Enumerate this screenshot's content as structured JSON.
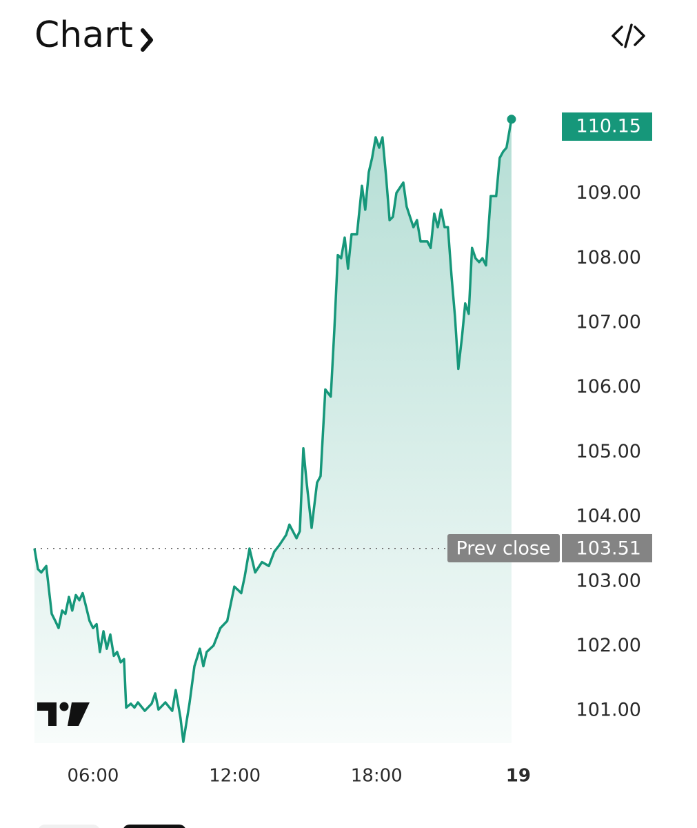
{
  "chart_data": {
    "type": "line",
    "title": "Chart",
    "x": [
      3.52,
      3.67,
      3.81,
      4.02,
      4.25,
      4.4,
      4.54,
      4.69,
      4.83,
      4.98,
      5.12,
      5.27,
      5.42,
      5.56,
      5.71,
      5.85,
      6.0,
      6.15,
      6.29,
      6.44,
      6.58,
      6.73,
      6.88,
      7.02,
      7.17,
      7.31,
      7.4,
      7.6,
      7.75,
      7.9,
      8.19,
      8.48,
      8.63,
      8.77,
      9.06,
      9.35,
      9.5,
      9.7,
      9.82,
      10.08,
      10.29,
      10.52,
      10.67,
      10.81,
      11.1,
      11.39,
      11.68,
      11.98,
      12.13,
      12.27,
      12.42,
      12.62,
      12.86,
      13.15,
      13.44,
      13.67,
      13.88,
      14.17,
      14.31,
      14.61,
      14.75,
      14.9,
      15.04,
      15.25,
      15.48,
      15.63,
      15.83,
      16.06,
      16.21,
      16.36,
      16.5,
      16.65,
      16.79,
      16.94,
      17.17,
      17.38,
      17.52,
      17.67,
      17.81,
      17.96,
      18.11,
      18.25,
      18.4,
      18.55,
      18.69,
      18.84,
      19.13,
      19.27,
      19.56,
      19.71,
      19.86,
      20.15,
      20.29,
      20.44,
      20.59,
      20.73,
      20.88,
      21.02,
      21.17,
      21.32,
      21.46,
      21.61,
      21.75,
      21.9,
      22.04,
      22.19,
      22.34,
      22.48,
      22.63,
      22.83,
      23.06,
      23.21,
      23.36,
      23.5,
      23.71
    ],
    "series": [
      {
        "color": "#16977a",
        "values": [
          103.51,
          103.19,
          103.14,
          103.24,
          102.5,
          102.39,
          102.28,
          102.55,
          102.5,
          102.76,
          102.55,
          102.79,
          102.71,
          102.82,
          102.6,
          102.39,
          102.28,
          102.34,
          101.91,
          102.23,
          101.96,
          102.18,
          101.85,
          101.91,
          101.75,
          101.8,
          101.05,
          101.11,
          101.05,
          101.13,
          101.0,
          101.11,
          101.27,
          101.02,
          101.13,
          101.0,
          101.32,
          100.89,
          100.52,
          101.11,
          101.69,
          101.96,
          101.69,
          101.91,
          102.01,
          102.28,
          102.39,
          102.92,
          102.87,
          102.82,
          103.08,
          103.51,
          103.14,
          103.3,
          103.24,
          103.46,
          103.56,
          103.72,
          103.88,
          103.67,
          103.78,
          105.06,
          104.53,
          103.83,
          104.53,
          104.63,
          105.97,
          105.86,
          106.88,
          108.05,
          108.0,
          108.32,
          107.84,
          108.37,
          108.37,
          109.12,
          108.75,
          109.33,
          109.55,
          109.87,
          109.71,
          109.87,
          109.28,
          108.59,
          108.64,
          109.01,
          109.17,
          108.8,
          108.48,
          108.59,
          108.26,
          108.26,
          108.16,
          108.69,
          108.48,
          108.75,
          108.48,
          108.48,
          107.73,
          107.09,
          106.29,
          106.77,
          107.3,
          107.14,
          108.16,
          108.0,
          107.94,
          108.0,
          107.89,
          108.96,
          108.96,
          109.55,
          109.65,
          109.71,
          110.15
        ]
      }
    ],
    "prev_close": 103.51,
    "prev_close_label": "Prev close",
    "xlim": [
      3.52,
      24.5
    ],
    "ylim": [
      100.5,
      110.5
    ],
    "xticks": [
      {
        "value": 6,
        "label": "06:00"
      },
      {
        "value": 12,
        "label": "12:00"
      },
      {
        "value": 18,
        "label": "18:00"
      },
      {
        "value": 24,
        "label": "19"
      }
    ],
    "yticks": [
      {
        "value": 101,
        "label": "101.00"
      },
      {
        "value": 102,
        "label": "102.00"
      },
      {
        "value": 103,
        "label": "103.00"
      },
      {
        "value": 104,
        "label": "104.00"
      },
      {
        "value": 105,
        "label": "105.00"
      },
      {
        "value": 106,
        "label": "106.00"
      },
      {
        "value": 107,
        "label": "107.00"
      },
      {
        "value": 108,
        "label": "108.00"
      },
      {
        "value": 109,
        "label": "109.00"
      }
    ],
    "grid": false
  }
}
